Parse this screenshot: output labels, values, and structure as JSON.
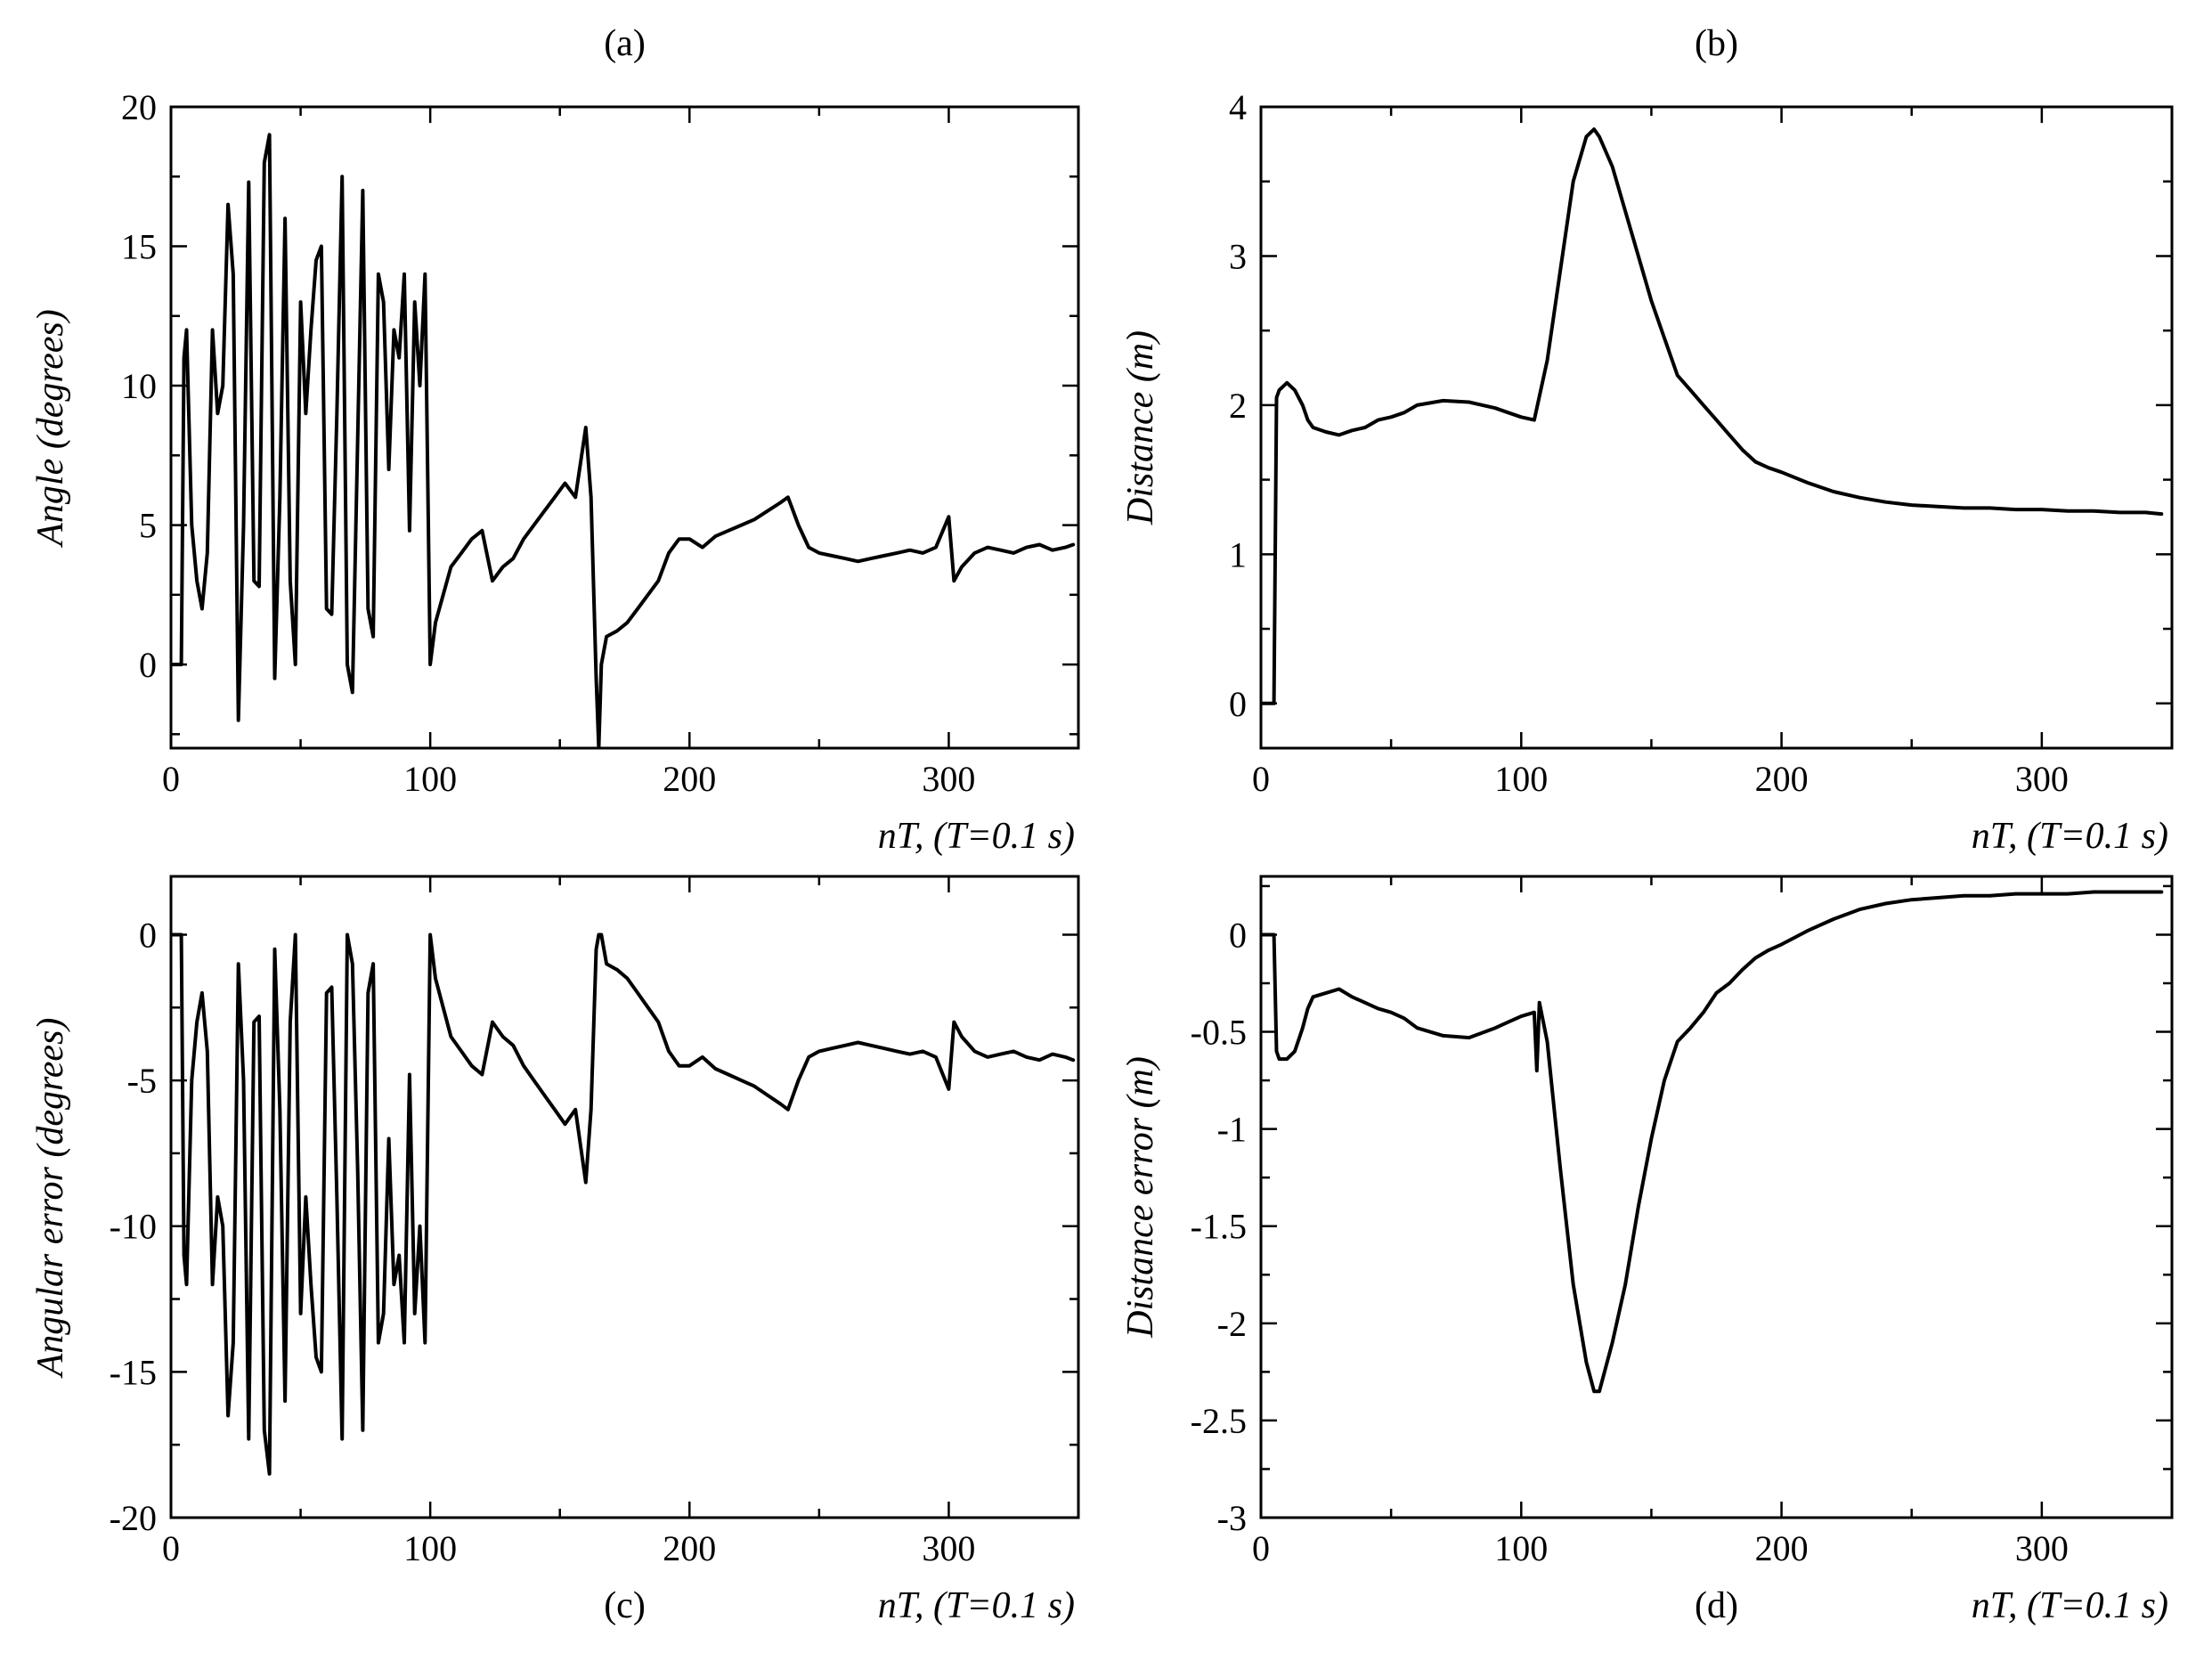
{
  "chart_data": [
    {
      "type": "line",
      "panel": "(a)",
      "title": "",
      "xlabel": "nT, (T=0.1 s)",
      "ylabel": "Angle (degrees)",
      "xlim": [
        0,
        350
      ],
      "ylim": [
        -3,
        20
      ],
      "xticks": [
        0,
        100,
        200,
        300
      ],
      "yticks": [
        0,
        5,
        10,
        15,
        20
      ],
      "grid": false,
      "series": [
        {
          "name": "angle",
          "x": [
            0,
            4,
            5,
            6,
            8,
            10,
            12,
            14,
            16,
            18,
            20,
            22,
            24,
            26,
            28,
            30,
            32,
            34,
            36,
            38,
            40,
            42,
            44,
            46,
            48,
            50,
            52,
            54,
            56,
            58,
            60,
            62,
            64,
            66,
            68,
            70,
            72,
            74,
            76,
            78,
            80,
            82,
            84,
            86,
            88,
            90,
            92,
            94,
            96,
            98,
            100,
            102,
            105,
            108,
            112,
            116,
            120,
            124,
            128,
            132,
            136,
            140,
            144,
            148,
            152,
            156,
            160,
            162,
            164,
            165,
            166,
            168,
            172,
            176,
            180,
            184,
            188,
            192,
            196,
            200,
            205,
            210,
            215,
            220,
            225,
            230,
            235,
            238,
            242,
            246,
            250,
            255,
            260,
            265,
            270,
            275,
            280,
            285,
            290,
            295,
            300,
            302,
            305,
            310,
            315,
            320,
            325,
            330,
            335,
            340,
            345,
            348
          ],
          "y": [
            0,
            0,
            11,
            12,
            5,
            3,
            2,
            4,
            12,
            9,
            10,
            16.5,
            14,
            -2,
            5,
            17.3,
            3,
            2.8,
            18,
            19,
            -0.5,
            6,
            16,
            3,
            0,
            13,
            9,
            12,
            14.5,
            15,
            2,
            1.8,
            9,
            17.5,
            0,
            -1,
            8,
            17,
            2,
            1,
            14,
            13,
            7,
            12,
            11,
            14,
            4.8,
            13,
            10,
            14,
            0,
            1.5,
            2.5,
            3.5,
            4,
            4.5,
            4.8,
            3,
            3.5,
            3.8,
            4.5,
            5,
            5.5,
            6,
            6.5,
            6,
            8.5,
            6,
            -0.5,
            -3,
            0,
            1,
            1.2,
            1.5,
            2,
            2.5,
            3,
            4,
            4.5,
            4.5,
            4.2,
            4.6,
            4.8,
            5,
            5.2,
            5.5,
            5.8,
            6,
            5,
            4.2,
            4,
            3.9,
            3.8,
            3.7,
            3.8,
            3.9,
            4,
            4.1,
            4,
            4.2,
            5.3,
            3,
            3.5,
            4,
            4.2,
            4.1,
            4,
            4.2,
            4.3,
            4.1,
            4.2,
            4.3
          ]
        }
      ]
    },
    {
      "type": "line",
      "panel": "(b)",
      "title": "",
      "xlabel": "nT, (T=0.1 s)",
      "ylabel": "Distance (m)",
      "xlim": [
        0,
        350
      ],
      "ylim": [
        -0.3,
        4
      ],
      "xticks": [
        0,
        100,
        200,
        300
      ],
      "yticks": [
        0,
        1,
        2,
        3,
        4
      ],
      "grid": false,
      "series": [
        {
          "name": "distance",
          "x": [
            0,
            5,
            6,
            7,
            10,
            13,
            16,
            18,
            20,
            25,
            30,
            35,
            40,
            45,
            50,
            55,
            60,
            70,
            80,
            90,
            95,
            100,
            105,
            110,
            115,
            120,
            125,
            128,
            130,
            135,
            140,
            145,
            150,
            155,
            160,
            165,
            170,
            175,
            180,
            185,
            190,
            195,
            200,
            210,
            220,
            230,
            240,
            250,
            260,
            270,
            280,
            290,
            300,
            310,
            320,
            330,
            340,
            346
          ],
          "y": [
            0,
            0,
            2.05,
            2.1,
            2.15,
            2.1,
            2.0,
            1.9,
            1.85,
            1.82,
            1.8,
            1.83,
            1.85,
            1.9,
            1.92,
            1.95,
            2.0,
            2.03,
            2.02,
            1.98,
            1.95,
            1.92,
            1.9,
            2.3,
            2.9,
            3.5,
            3.8,
            3.85,
            3.8,
            3.6,
            3.3,
            3.0,
            2.7,
            2.45,
            2.2,
            2.1,
            2.0,
            1.9,
            1.8,
            1.7,
            1.62,
            1.58,
            1.55,
            1.48,
            1.42,
            1.38,
            1.35,
            1.33,
            1.32,
            1.31,
            1.31,
            1.3,
            1.3,
            1.29,
            1.29,
            1.28,
            1.28,
            1.27
          ]
        }
      ]
    },
    {
      "type": "line",
      "panel": "(c)",
      "title": "",
      "xlabel": "nT, (T=0.1 s)",
      "ylabel": "Angular error (degrees)",
      "xlim": [
        0,
        350
      ],
      "ylim": [
        -20,
        2
      ],
      "xticks": [
        0,
        100,
        200,
        300
      ],
      "yticks": [
        -20,
        -15,
        -10,
        -5,
        0
      ],
      "grid": false,
      "series": [
        {
          "name": "angular error",
          "x": [
            0,
            4,
            5,
            6,
            8,
            10,
            12,
            14,
            16,
            18,
            20,
            22,
            24,
            26,
            28,
            30,
            32,
            34,
            36,
            38,
            40,
            42,
            44,
            46,
            48,
            50,
            52,
            54,
            56,
            58,
            60,
            62,
            64,
            66,
            68,
            70,
            72,
            74,
            76,
            78,
            80,
            82,
            84,
            86,
            88,
            90,
            92,
            94,
            96,
            98,
            100,
            102,
            105,
            108,
            112,
            116,
            120,
            124,
            128,
            132,
            136,
            140,
            144,
            148,
            152,
            156,
            160,
            162,
            164,
            165,
            166,
            168,
            172,
            176,
            180,
            184,
            188,
            192,
            196,
            200,
            205,
            210,
            215,
            220,
            225,
            230,
            235,
            238,
            242,
            246,
            250,
            255,
            260,
            265,
            270,
            275,
            280,
            285,
            290,
            295,
            300,
            302,
            305,
            310,
            315,
            320,
            325,
            330,
            335,
            340,
            345,
            348
          ],
          "y": [
            0,
            0,
            -11,
            -12,
            -5,
            -3,
            -2,
            -4,
            -12,
            -9,
            -10,
            -16.5,
            -14,
            -1,
            -5,
            -17.3,
            -3,
            -2.8,
            -17,
            -18.5,
            -0.5,
            -6,
            -16,
            -3,
            0,
            -13,
            -9,
            -12,
            -14.5,
            -15,
            -2,
            -1.8,
            -9,
            -17.3,
            0,
            -1,
            -8,
            -17,
            -2,
            -1,
            -14,
            -13,
            -7,
            -12,
            -11,
            -14,
            -4.8,
            -13,
            -10,
            -14,
            0,
            -1.5,
            -2.5,
            -3.5,
            -4,
            -4.5,
            -4.8,
            -3,
            -3.5,
            -3.8,
            -4.5,
            -5,
            -5.5,
            -6,
            -6.5,
            -6,
            -8.5,
            -6,
            -0.5,
            0,
            0,
            -1,
            -1.2,
            -1.5,
            -2,
            -2.5,
            -3,
            -4,
            -4.5,
            -4.5,
            -4.2,
            -4.6,
            -4.8,
            -5,
            -5.2,
            -5.5,
            -5.8,
            -6,
            -5,
            -4.2,
            -4,
            -3.9,
            -3.8,
            -3.7,
            -3.8,
            -3.9,
            -4,
            -4.1,
            -4,
            -4.2,
            -5.3,
            -3,
            -3.5,
            -4,
            -4.2,
            -4.1,
            -4,
            -4.2,
            -4.3,
            -4.1,
            -4.2,
            -4.3
          ]
        }
      ]
    },
    {
      "type": "line",
      "panel": "(d)",
      "title": "",
      "xlabel": "nT, (T=0.1 s)",
      "ylabel": "Distance error (m)",
      "xlim": [
        0,
        350
      ],
      "ylim": [
        -3,
        0.3
      ],
      "xticks": [
        0,
        100,
        200,
        300
      ],
      "yticks": [
        -3,
        -2.5,
        -2,
        -1.5,
        -1,
        -0.5,
        0
      ],
      "grid": false,
      "series": [
        {
          "name": "distance error",
          "x": [
            0,
            5,
            6,
            7,
            10,
            13,
            16,
            18,
            20,
            25,
            30,
            35,
            40,
            45,
            50,
            55,
            60,
            70,
            80,
            90,
            95,
            100,
            105,
            106,
            107,
            110,
            115,
            120,
            125,
            128,
            130,
            135,
            140,
            145,
            150,
            155,
            160,
            165,
            170,
            175,
            180,
            185,
            190,
            195,
            200,
            210,
            220,
            230,
            240,
            250,
            260,
            270,
            280,
            290,
            300,
            310,
            320,
            330,
            340,
            346
          ],
          "y": [
            0,
            0,
            -0.6,
            -0.64,
            -0.64,
            -0.6,
            -0.48,
            -0.38,
            -0.32,
            -0.3,
            -0.28,
            -0.32,
            -0.35,
            -0.38,
            -0.4,
            -0.43,
            -0.48,
            -0.52,
            -0.53,
            -0.48,
            -0.45,
            -0.42,
            -0.4,
            -0.7,
            -0.35,
            -0.55,
            -1.2,
            -1.8,
            -2.2,
            -2.35,
            -2.35,
            -2.1,
            -1.8,
            -1.4,
            -1.05,
            -0.75,
            -0.55,
            -0.48,
            -0.4,
            -0.3,
            -0.25,
            -0.18,
            -0.12,
            -0.08,
            -0.05,
            0.02,
            0.08,
            0.13,
            0.16,
            0.18,
            0.19,
            0.2,
            0.2,
            0.21,
            0.21,
            0.21,
            0.22,
            0.22,
            0.22,
            0.22
          ]
        }
      ]
    }
  ]
}
